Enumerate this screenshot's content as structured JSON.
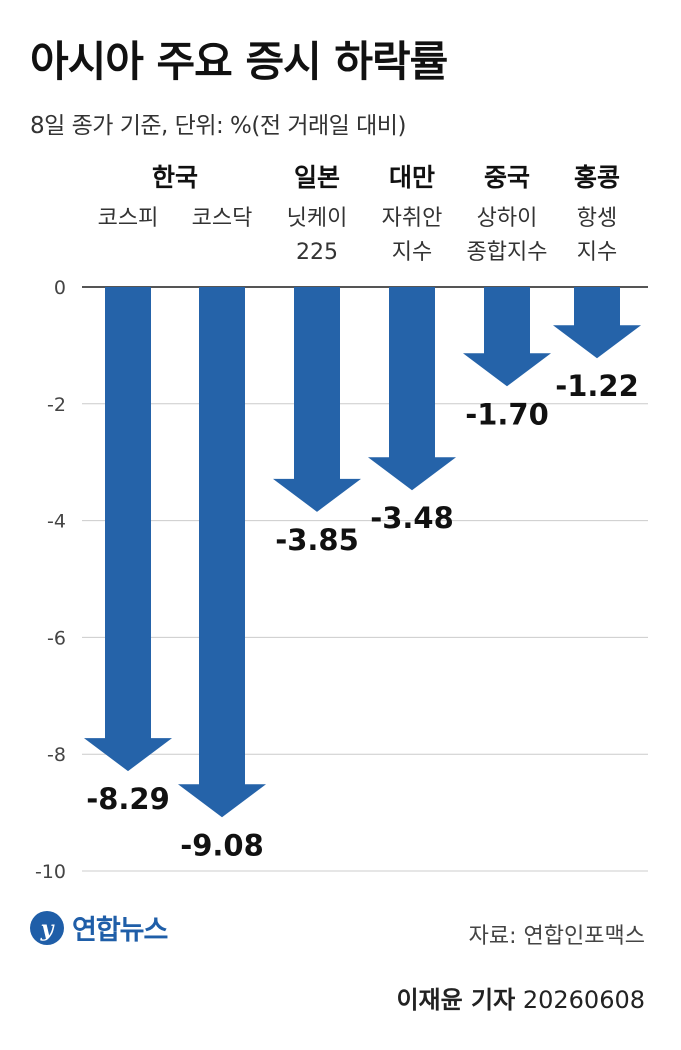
{
  "title": "아시아 주요 증시 하락률",
  "subtitle": "8일 종가 기준, 단위: %(전 거래일 대비)",
  "source": "자료: 연합인포맥스",
  "credit_name": "이재윤 기자",
  "credit_date": "20260608",
  "logo_text": "연합뉴스",
  "colors": {
    "bar": "#2563a9",
    "grid": "#cccccc",
    "axis": "#555555"
  },
  "chart_data": {
    "type": "bar",
    "title": "아시아 주요 증시 하락률",
    "ylim": [
      -10,
      0
    ],
    "yticks": [
      0,
      -2,
      -4,
      -6,
      -8,
      -10
    ],
    "grid": true,
    "groups": [
      {
        "name": "한국",
        "members": [
          0,
          1
        ]
      },
      {
        "name": "일본",
        "members": [
          2
        ]
      },
      {
        "name": "대만",
        "members": [
          3
        ]
      },
      {
        "name": "중국",
        "members": [
          4
        ]
      },
      {
        "name": "홍콩",
        "members": [
          5
        ]
      }
    ],
    "categories": [
      [
        "코스피"
      ],
      [
        "코스닥"
      ],
      [
        "닛케이",
        "225"
      ],
      [
        "자취안",
        "지수"
      ],
      [
        "상하이",
        "종합지수"
      ],
      [
        "항셍",
        "지수"
      ]
    ],
    "values": [
      -8.29,
      -9.08,
      -3.85,
      -3.48,
      -1.7,
      -1.22
    ],
    "value_labels": [
      "-8.29",
      "-9.08",
      "-3.85",
      "-3.48",
      "-1.70",
      "-1.22"
    ]
  }
}
